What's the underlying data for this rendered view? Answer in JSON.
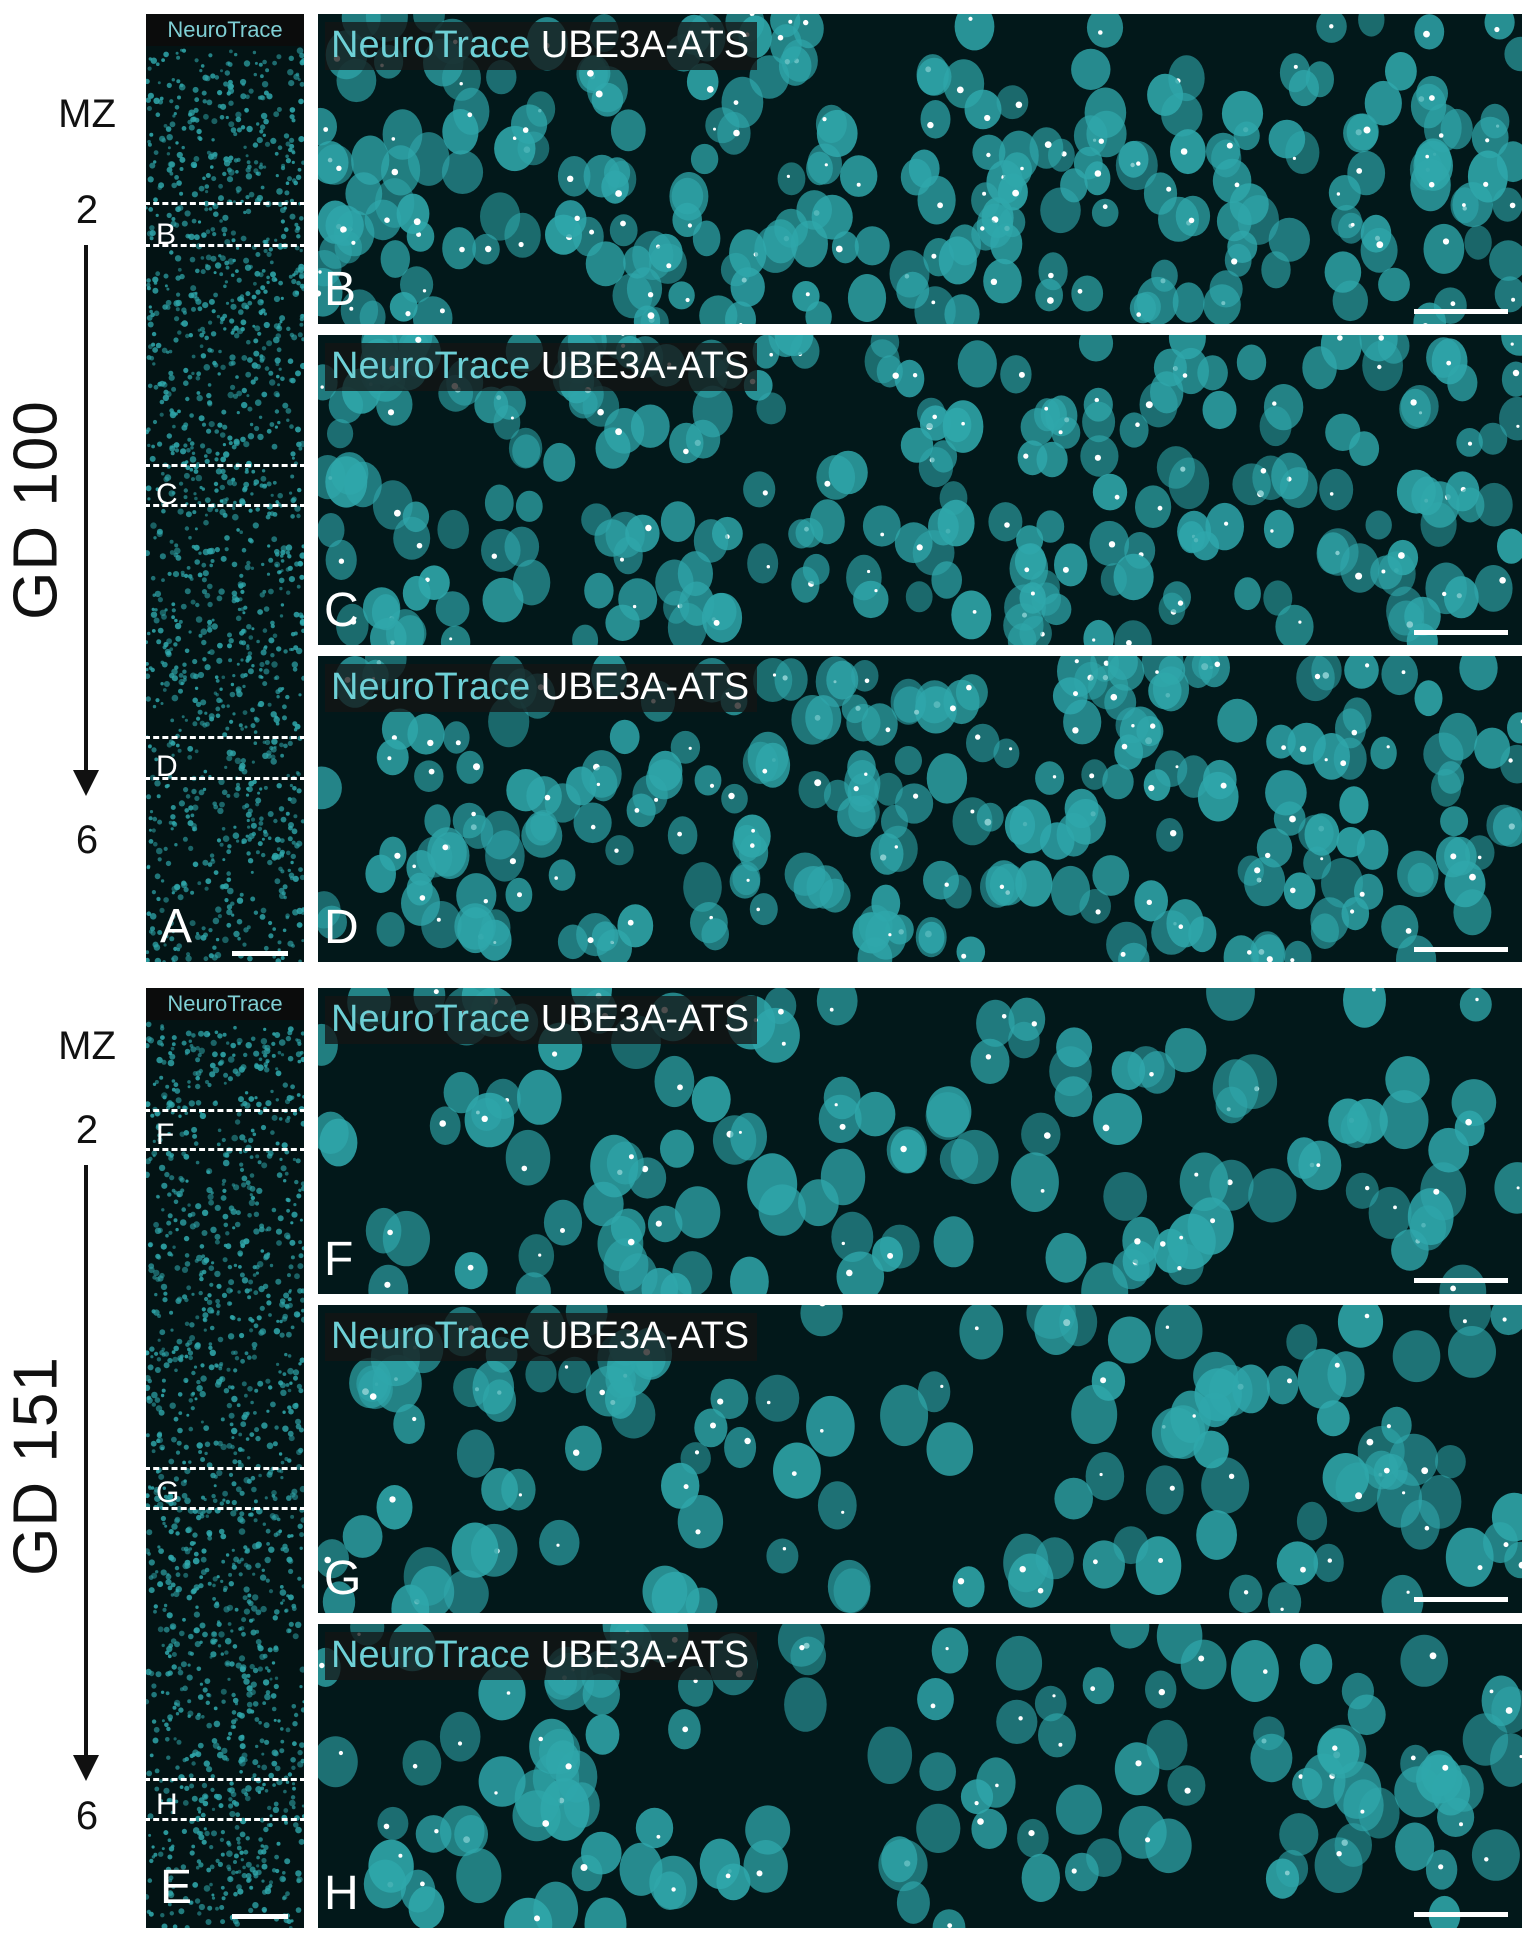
{
  "colors": {
    "neurotrace": "#6ed0d6",
    "ube3a": "#ffffff",
    "cell": "#2fa7ab",
    "background": "#031314"
  },
  "groups": [
    {
      "id": "gd100",
      "title": "GD 100",
      "mz_label": "MZ",
      "top_label": "2",
      "bottom_label": "6",
      "strip": {
        "title": "NeuroTrace",
        "letter": "A",
        "boxes": [
          "B",
          "C",
          "D"
        ]
      },
      "panels": [
        {
          "letter": "B",
          "caption_nt": "NeuroTrace",
          "caption_ube": "UBE3A-ATS"
        },
        {
          "letter": "C",
          "caption_nt": "NeuroTrace",
          "caption_ube": "UBE3A-ATS"
        },
        {
          "letter": "D",
          "caption_nt": "NeuroTrace",
          "caption_ube": "UBE3A-ATS"
        }
      ]
    },
    {
      "id": "gd151",
      "title": "GD 151",
      "mz_label": "MZ",
      "top_label": "2",
      "bottom_label": "6",
      "strip": {
        "title": "NeuroTrace",
        "letter": "E",
        "boxes": [
          "F",
          "G",
          "H"
        ]
      },
      "panels": [
        {
          "letter": "F",
          "caption_nt": "NeuroTrace",
          "caption_ube": "UBE3A-ATS"
        },
        {
          "letter": "G",
          "caption_nt": "NeuroTrace",
          "caption_ube": "UBE3A-ATS"
        },
        {
          "letter": "H",
          "caption_nt": "NeuroTrace",
          "caption_ube": "UBE3A-ATS"
        }
      ]
    }
  ]
}
